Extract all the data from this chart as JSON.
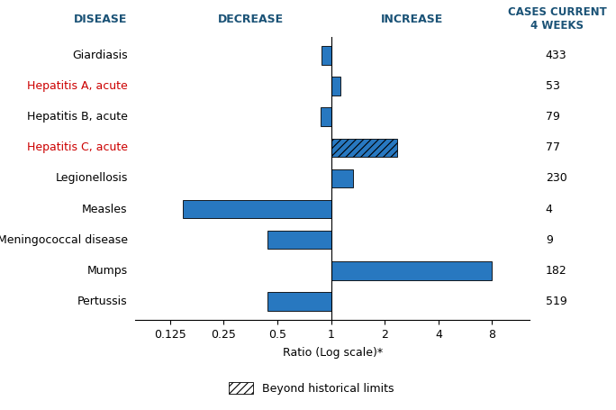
{
  "diseases": [
    "Giardiasis",
    "Hepatitis A, acute",
    "Hepatitis B, acute",
    "Hepatitis C, acute",
    "Legionellosis",
    "Measles",
    "Meningococcal disease",
    "Mumps",
    "Pertussis"
  ],
  "ratios": [
    0.88,
    1.13,
    0.87,
    2.35,
    1.32,
    0.148,
    0.44,
    8.0,
    0.44
  ],
  "cases": [
    "433",
    "53",
    "79",
    "77",
    "230",
    "4",
    "9",
    "182",
    "519"
  ],
  "beyond_historical": [
    false,
    false,
    false,
    true,
    false,
    false,
    false,
    false,
    false
  ],
  "bar_color": "#2878c0",
  "hatch_beyond": "////",
  "title_disease": "DISEASE",
  "title_decrease": "DECREASE",
  "title_increase": "INCREASE",
  "title_cases": "CASES CURRENT\n4 WEEKS",
  "xlabel": "Ratio (Log scale)*",
  "legend_label": "Beyond historical limits",
  "xlim_left": 0.08,
  "xlim_right": 13.0,
  "xticks": [
    0.125,
    0.25,
    0.5,
    1,
    2,
    4,
    8
  ],
  "xtick_labels": [
    "0.125",
    "0.25",
    "0.5",
    "1",
    "2",
    "4",
    "8"
  ],
  "disease_color_normal": "#000000",
  "disease_color_red": "#cc0000",
  "red_diseases": [
    "Hepatitis A, acute",
    "Hepatitis C, acute"
  ],
  "figsize": [
    6.84,
    4.55
  ],
  "dpi": 100
}
